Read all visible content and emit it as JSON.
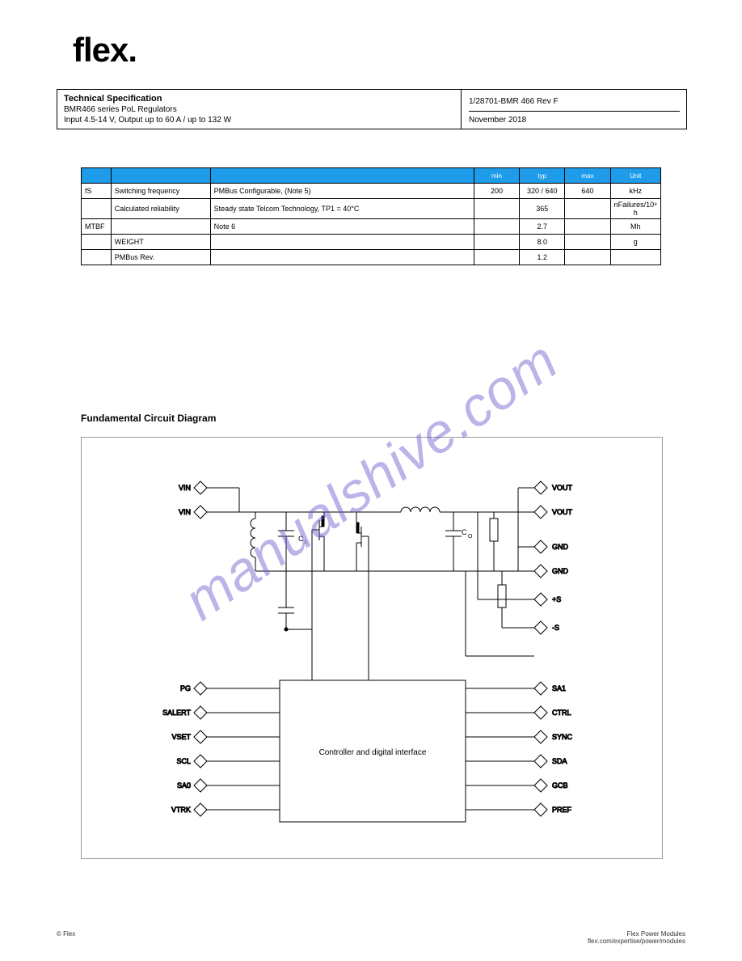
{
  "logo": "flex.",
  "header": {
    "title": "Technical Specification",
    "line2": "BMR466 series PoL Regulators",
    "line3": "Input 4.5-14 V, Output up to 60 A / up to 132 W",
    "docno": "1/28701-BMR 466 Rev F",
    "date": "November 2018"
  },
  "table": {
    "header_color": "#1e9be9",
    "columns": [
      "",
      "",
      "",
      "min",
      "typ",
      "max",
      "Unit"
    ],
    "rows": [
      [
        "fS",
        "Switching frequency",
        "PMBus Configurable, (Note 5)",
        "200",
        "320 / 640",
        "640",
        "kHz"
      ],
      [
        "",
        "Calculated reliability",
        "Steady state Telcom Technology, TP1 = 40°C",
        "",
        "365",
        "",
        "nFailures/10⁹ h"
      ],
      [
        "MTBF",
        "",
        "Note 6",
        "",
        "2.7",
        "",
        "Mh"
      ],
      [
        "",
        "WEIGHT",
        "",
        "",
        "8.0",
        "",
        "g"
      ],
      [
        "",
        "PMBus Rev.",
        "",
        "",
        "1.2",
        "",
        ""
      ]
    ]
  },
  "fundamental_title": "Fundamental Circuit Diagram",
  "diagram": {
    "controller_label": "Controller and digital interface",
    "left_pins": [
      "VIN",
      "VIN",
      "PG",
      "SALERT",
      "VSET",
      "SCL",
      "SA0",
      "VTRK"
    ],
    "right_pins": [
      "VOUT",
      "VOUT",
      "GND",
      "GND",
      "+S",
      "-S",
      "SA1",
      "CTRL",
      "SYNC",
      "SDA",
      "GCB",
      "PREF"
    ],
    "component_labels": {
      "ci": "C",
      "ci_sub": "I",
      "co": "C",
      "co_sub": "O"
    },
    "colors": {
      "frame": "#999999",
      "wires": "#000000",
      "controller_fill": "#ffffff",
      "controller_stroke": "#000000"
    }
  },
  "watermark": "manualshive.com",
  "footer": {
    "left": "© Flex",
    "right1": "Flex Power Modules",
    "right2": "flex.com/expertise/power/modules"
  }
}
